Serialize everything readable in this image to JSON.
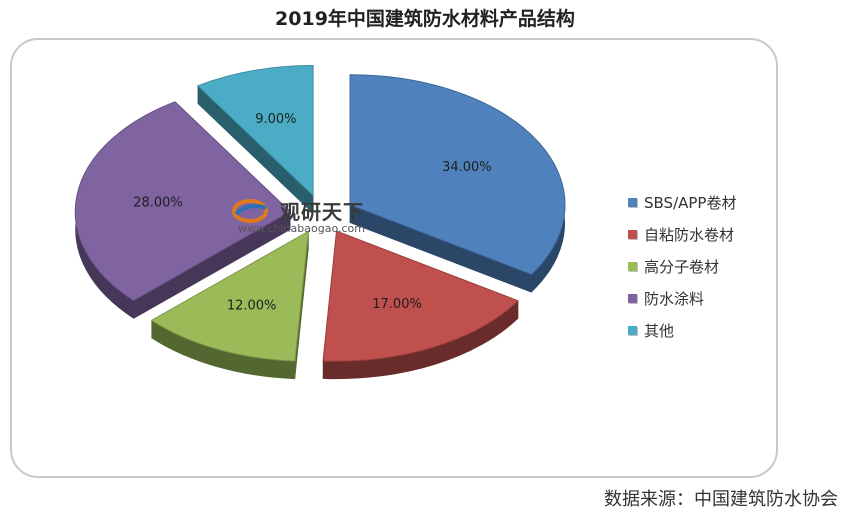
{
  "title": "2019年中国建筑防水材料产品结构",
  "source": "数据来源：中国建筑防水协会",
  "watermark": {
    "brand": "观研天下",
    "url": "www.chinabaogao.com"
  },
  "chart_data": {
    "type": "pie",
    "style": "3d-exploded",
    "title": "2019年中国建筑防水材料产品结构",
    "unit": "%",
    "legend_position": "right",
    "slices": [
      {
        "label": "SBS/APP卷材",
        "value": 34.0,
        "value_label": "34.00%",
        "color": "#4f81bd"
      },
      {
        "label": "自粘防水卷材",
        "value": 17.0,
        "value_label": "17.00%",
        "color": "#c0504d"
      },
      {
        "label": "高分子卷材",
        "value": 12.0,
        "value_label": "12.00%",
        "color": "#9bbb59"
      },
      {
        "label": "防水涂料",
        "value": 28.0,
        "value_label": "28.00%",
        "color": "#8064a2"
      },
      {
        "label": "其他",
        "value": 9.0,
        "value_label": "9.00%",
        "color": "#4bacc6"
      }
    ]
  }
}
